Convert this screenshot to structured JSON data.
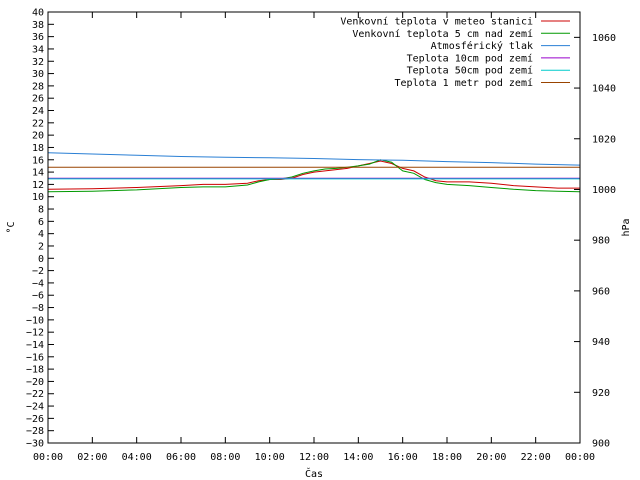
{
  "chart_data": {
    "type": "line",
    "xlabel": "Čas",
    "ylabel": "°C",
    "y2label": "hPa",
    "x_ticks": [
      "00:00",
      "02:00",
      "04:00",
      "06:00",
      "08:00",
      "10:00",
      "12:00",
      "14:00",
      "16:00",
      "18:00",
      "20:00",
      "22:00",
      "00:00"
    ],
    "x_range_hours": [
      0,
      24
    ],
    "ylim": [
      -30,
      40
    ],
    "y_ticks": [
      40,
      38,
      36,
      34,
      32,
      30,
      28,
      26,
      24,
      22,
      20,
      18,
      16,
      14,
      12,
      10,
      8,
      6,
      4,
      2,
      0,
      -2,
      -4,
      -6,
      -8,
      -10,
      -12,
      -14,
      -16,
      -18,
      -20,
      -22,
      -24,
      -26,
      -28,
      -30
    ],
    "y2lim": [
      900,
      1070
    ],
    "y2_ticks": [
      1060,
      1040,
      1020,
      1000,
      980,
      960,
      940,
      920,
      900
    ],
    "legend_position": "top-right",
    "grid": false,
    "series": [
      {
        "name": "Venkovní teplota v meteo stanici",
        "color": "#cc0000",
        "axis": "left",
        "x": [
          0,
          2,
          4,
          6,
          7,
          8,
          9,
          9.5,
          10,
          10.5,
          11,
          11.5,
          12,
          12.5,
          13,
          13.5,
          14,
          14.5,
          15,
          15.5,
          16,
          16.5,
          17,
          17.5,
          18,
          19,
          20,
          21,
          22,
          23,
          24
        ],
        "y": [
          11.2,
          11.3,
          11.5,
          11.8,
          12.0,
          12.0,
          12.2,
          12.6,
          12.8,
          12.8,
          13.0,
          13.6,
          14.0,
          14.2,
          14.4,
          14.6,
          15.0,
          15.4,
          15.8,
          15.4,
          14.6,
          14.2,
          13.2,
          12.6,
          12.4,
          12.4,
          12.2,
          11.8,
          11.6,
          11.4,
          11.4
        ]
      },
      {
        "name": "Venkovní teplota 5 cm nad zemí",
        "color": "#009900",
        "axis": "left",
        "x": [
          0,
          2,
          4,
          6,
          7,
          8,
          9,
          9.5,
          10,
          10.5,
          11,
          11.5,
          12,
          12.5,
          13,
          13.5,
          14,
          14.5,
          15,
          15.5,
          16,
          16.5,
          17,
          17.5,
          18,
          19,
          20,
          21,
          22,
          23,
          24
        ],
        "y": [
          10.8,
          10.9,
          11.1,
          11.5,
          11.6,
          11.6,
          11.9,
          12.4,
          12.8,
          12.9,
          13.2,
          13.8,
          14.2,
          14.5,
          14.6,
          14.8,
          15.0,
          15.3,
          16.0,
          15.6,
          14.2,
          13.8,
          12.8,
          12.3,
          12.0,
          11.8,
          11.5,
          11.2,
          11.0,
          10.9,
          10.8
        ]
      },
      {
        "name": "Atmosférický tlak",
        "color": "#2a7fd4",
        "axis": "right",
        "x": [
          0,
          2,
          4,
          6,
          8,
          10,
          12,
          14,
          16,
          18,
          20,
          22,
          24
        ],
        "y": [
          1014.5,
          1014.0,
          1013.5,
          1013.0,
          1012.7,
          1012.5,
          1012.2,
          1011.8,
          1011.5,
          1011.0,
          1010.6,
          1010.0,
          1009.6
        ]
      },
      {
        "name": "Teplota 10cm pod zemí",
        "color": "#9900cc",
        "axis": "left",
        "x": [
          0,
          24
        ],
        "y": [
          13.0,
          13.0
        ]
      },
      {
        "name": "Teplota 50cm pod zemí",
        "color": "#00cccc",
        "axis": "left",
        "x": [
          0,
          24
        ],
        "y": [
          12.9,
          12.9
        ]
      },
      {
        "name": "Teplota 1 metr pod zemí",
        "color": "#994400",
        "axis": "left",
        "x": [
          0,
          24
        ],
        "y": [
          14.8,
          14.8
        ]
      }
    ]
  }
}
